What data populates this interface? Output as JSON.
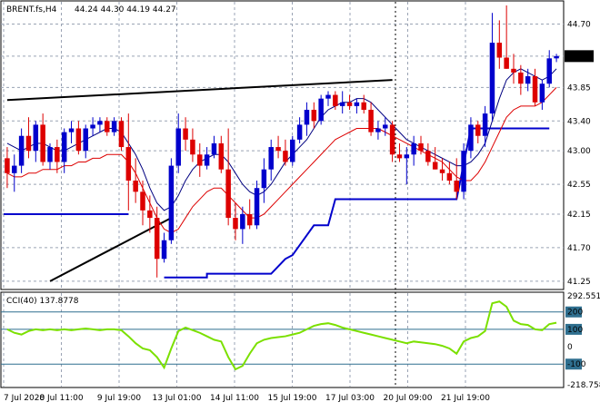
{
  "header": {
    "symbol": "BRENT.fs,H4",
    "ohlc": "44.24 44.30 44.19 44.27"
  },
  "colors": {
    "bull": "#0000cc",
    "bear": "#dd0000",
    "grid": "#9aa3b4",
    "ma_fast": "#000080",
    "ma_slow": "#dd0000",
    "trend": "#000000",
    "level": "#0000cc",
    "cci": "#7be000",
    "cci_level": "#2f6f8f",
    "price_tag_bg": "#000000",
    "price_tag_fg": "#ffffff"
  },
  "price_tag": "44.27",
  "cci_header": "CCI(40) 137.8778",
  "chart_data": [
    {
      "type": "candlestick",
      "title": "BRENT.fs,H4",
      "ylim": [
        41.2,
        44.95
      ],
      "y_ticks": [
        "44.70",
        "44.27",
        "43.85",
        "43.40",
        "43.00",
        "42.55",
        "42.15",
        "41.70",
        "41.25"
      ],
      "x_ticks": [
        "7 Jul 2020",
        "8 Jul 11:00",
        "9 Jul 19:00",
        "13 Jul 01:00",
        "14 Jul 11:00",
        "15 Jul 19:00",
        "17 Jul 03:00",
        "20 Jul 09:00",
        "21 Jul 19:00"
      ],
      "current_price": 44.27,
      "candles": [
        [
          42.9,
          43.05,
          42.5,
          42.7
        ],
        [
          42.7,
          42.95,
          42.45,
          42.8
        ],
        [
          42.8,
          43.3,
          42.7,
          43.2
        ],
        [
          43.2,
          43.45,
          42.9,
          43.0
        ],
        [
          43.0,
          43.4,
          42.85,
          43.35
        ],
        [
          43.35,
          43.5,
          42.8,
          42.85
        ],
        [
          42.85,
          43.1,
          42.75,
          43.05
        ],
        [
          43.05,
          43.15,
          42.7,
          42.85
        ],
        [
          42.85,
          43.3,
          42.7,
          43.25
        ],
        [
          43.25,
          43.4,
          43.1,
          43.3
        ],
        [
          43.3,
          43.4,
          42.95,
          43.0
        ],
        [
          43.0,
          43.35,
          42.9,
          43.3
        ],
        [
          43.3,
          43.45,
          43.2,
          43.35
        ],
        [
          43.35,
          43.45,
          43.25,
          43.4
        ],
        [
          43.4,
          43.45,
          43.2,
          43.25
        ],
        [
          43.25,
          43.45,
          43.2,
          43.4
        ],
        [
          43.4,
          43.45,
          43.0,
          43.05
        ],
        [
          43.05,
          43.5,
          42.2,
          42.6
        ],
        [
          42.6,
          42.9,
          42.3,
          42.45
        ],
        [
          42.45,
          42.6,
          42.0,
          42.2
        ],
        [
          42.2,
          42.4,
          41.9,
          42.1
        ],
        [
          42.1,
          42.25,
          41.3,
          41.55
        ],
        [
          41.55,
          41.9,
          41.5,
          41.8
        ],
        [
          41.8,
          42.9,
          41.75,
          42.8
        ],
        [
          42.8,
          43.5,
          42.7,
          43.3
        ],
        [
          43.3,
          43.45,
          43.0,
          43.15
        ],
        [
          43.15,
          43.3,
          42.85,
          42.95
        ],
        [
          42.95,
          43.1,
          42.65,
          42.8
        ],
        [
          42.8,
          43.05,
          42.75,
          42.95
        ],
        [
          42.95,
          43.2,
          42.9,
          43.1
        ],
        [
          43.1,
          43.2,
          42.7,
          42.75
        ],
        [
          42.75,
          43.3,
          42.0,
          42.1
        ],
        [
          42.1,
          42.3,
          41.8,
          41.95
        ],
        [
          41.95,
          42.25,
          41.75,
          42.15
        ],
        [
          42.15,
          42.35,
          41.95,
          42.0
        ],
        [
          42.0,
          42.6,
          41.95,
          42.5
        ],
        [
          42.5,
          42.9,
          42.3,
          42.75
        ],
        [
          42.75,
          43.15,
          42.6,
          43.05
        ],
        [
          43.05,
          43.2,
          42.9,
          43.0
        ],
        [
          43.0,
          43.15,
          42.8,
          42.85
        ],
        [
          42.85,
          43.2,
          42.8,
          43.15
        ],
        [
          43.15,
          43.45,
          43.1,
          43.35
        ],
        [
          43.35,
          43.65,
          43.2,
          43.55
        ],
        [
          43.55,
          43.65,
          43.3,
          43.4
        ],
        [
          43.4,
          43.75,
          43.35,
          43.7
        ],
        [
          43.7,
          43.8,
          43.6,
          43.75
        ],
        [
          43.75,
          43.8,
          43.55,
          43.6
        ],
        [
          43.6,
          43.8,
          43.5,
          43.65
        ],
        [
          43.65,
          43.75,
          43.55,
          43.6
        ],
        [
          43.6,
          43.7,
          43.5,
          43.65
        ],
        [
          43.65,
          43.75,
          43.5,
          43.55
        ],
        [
          43.55,
          43.65,
          43.2,
          43.25
        ],
        [
          43.25,
          43.4,
          43.15,
          43.3
        ],
        [
          43.3,
          43.45,
          43.2,
          43.35
        ],
        [
          43.35,
          43.4,
          42.85,
          42.95
        ],
        [
          42.95,
          43.1,
          42.85,
          42.9
        ],
        [
          42.9,
          43.05,
          42.55,
          42.95
        ],
        [
          42.95,
          43.2,
          42.8,
          43.1
        ],
        [
          43.1,
          43.2,
          42.95,
          43.0
        ],
        [
          43.0,
          43.1,
          42.8,
          42.85
        ],
        [
          42.85,
          43.05,
          42.75,
          42.75
        ],
        [
          42.75,
          42.9,
          42.6,
          42.7
        ],
        [
          42.7,
          42.85,
          42.55,
          42.6
        ],
        [
          42.6,
          42.9,
          42.35,
          42.45
        ],
        [
          42.45,
          43.1,
          42.35,
          43.0
        ],
        [
          43.0,
          43.45,
          42.9,
          43.35
        ],
        [
          43.35,
          43.4,
          43.1,
          43.2
        ],
        [
          43.2,
          43.6,
          43.05,
          43.5
        ],
        [
          43.5,
          44.85,
          43.4,
          44.45
        ],
        [
          44.45,
          44.75,
          44.1,
          44.25
        ],
        [
          44.25,
          44.95,
          44.1,
          44.1
        ],
        [
          44.1,
          44.3,
          43.9,
          44.05
        ],
        [
          44.05,
          44.15,
          43.75,
          43.9
        ],
        [
          43.9,
          44.1,
          43.8,
          44.0
        ],
        [
          44.0,
          44.1,
          43.6,
          43.65
        ],
        [
          43.65,
          43.95,
          43.55,
          43.9
        ],
        [
          43.9,
          44.35,
          43.85,
          44.24
        ],
        [
          44.24,
          44.3,
          44.19,
          44.27
        ]
      ],
      "ma_fast": [
        43.1,
        43.05,
        43.0,
        43.05,
        43.1,
        43.1,
        43.05,
        43.0,
        43.0,
        43.05,
        43.1,
        43.15,
        43.2,
        43.25,
        43.3,
        43.3,
        43.25,
        43.1,
        42.95,
        42.75,
        42.5,
        42.3,
        42.2,
        42.25,
        42.4,
        42.6,
        42.75,
        42.85,
        42.9,
        42.95,
        42.95,
        42.85,
        42.7,
        42.55,
        42.45,
        42.4,
        42.45,
        42.55,
        42.7,
        42.85,
        42.95,
        43.05,
        43.15,
        43.3,
        43.45,
        43.55,
        43.6,
        43.65,
        43.65,
        43.7,
        43.7,
        43.65,
        43.55,
        43.45,
        43.35,
        43.25,
        43.15,
        43.1,
        43.05,
        43.0,
        42.95,
        42.9,
        42.85,
        42.8,
        42.8,
        42.85,
        42.95,
        43.1,
        43.4,
        43.7,
        43.95,
        44.05,
        44.1,
        44.05,
        44.0,
        43.95,
        44.0,
        44.1
      ],
      "ma_slow": [
        42.7,
        42.65,
        42.65,
        42.7,
        42.7,
        42.75,
        42.75,
        42.75,
        42.8,
        42.8,
        42.85,
        42.85,
        42.9,
        42.9,
        42.95,
        42.95,
        42.95,
        42.85,
        42.7,
        42.5,
        42.3,
        42.1,
        41.95,
        41.9,
        41.95,
        42.1,
        42.25,
        42.35,
        42.45,
        42.5,
        42.5,
        42.4,
        42.3,
        42.2,
        42.1,
        42.1,
        42.15,
        42.25,
        42.35,
        42.45,
        42.55,
        42.65,
        42.75,
        42.85,
        42.95,
        43.05,
        43.15,
        43.2,
        43.25,
        43.3,
        43.3,
        43.3,
        43.3,
        43.25,
        43.2,
        43.15,
        43.1,
        43.05,
        43.0,
        42.95,
        42.9,
        42.85,
        42.75,
        42.65,
        42.6,
        42.6,
        42.7,
        42.85,
        43.05,
        43.25,
        43.45,
        43.55,
        43.6,
        43.6,
        43.6,
        43.65,
        43.75,
        43.85
      ]
    },
    {
      "type": "line",
      "title": "CCI(40) 137.8778",
      "ylim": [
        -218.758,
        292.5516
      ],
      "y_ticks": [
        "292.5516",
        "200",
        "100",
        "0",
        "-100",
        "-218.758"
      ],
      "levels": [
        200,
        100,
        -100
      ],
      "values": [
        100,
        80,
        70,
        90,
        100,
        95,
        100,
        95,
        100,
        95,
        100,
        105,
        100,
        95,
        100,
        100,
        95,
        60,
        20,
        -10,
        -20,
        -60,
        -120,
        -10,
        90,
        110,
        95,
        80,
        60,
        40,
        30,
        -60,
        -130,
        -110,
        -40,
        20,
        40,
        50,
        55,
        60,
        70,
        80,
        100,
        120,
        130,
        135,
        125,
        110,
        100,
        90,
        80,
        70,
        60,
        50,
        40,
        30,
        20,
        30,
        25,
        20,
        15,
        5,
        -10,
        -40,
        30,
        50,
        60,
        90,
        250,
        260,
        230,
        150,
        130,
        125,
        100,
        95,
        130,
        138
      ]
    }
  ]
}
